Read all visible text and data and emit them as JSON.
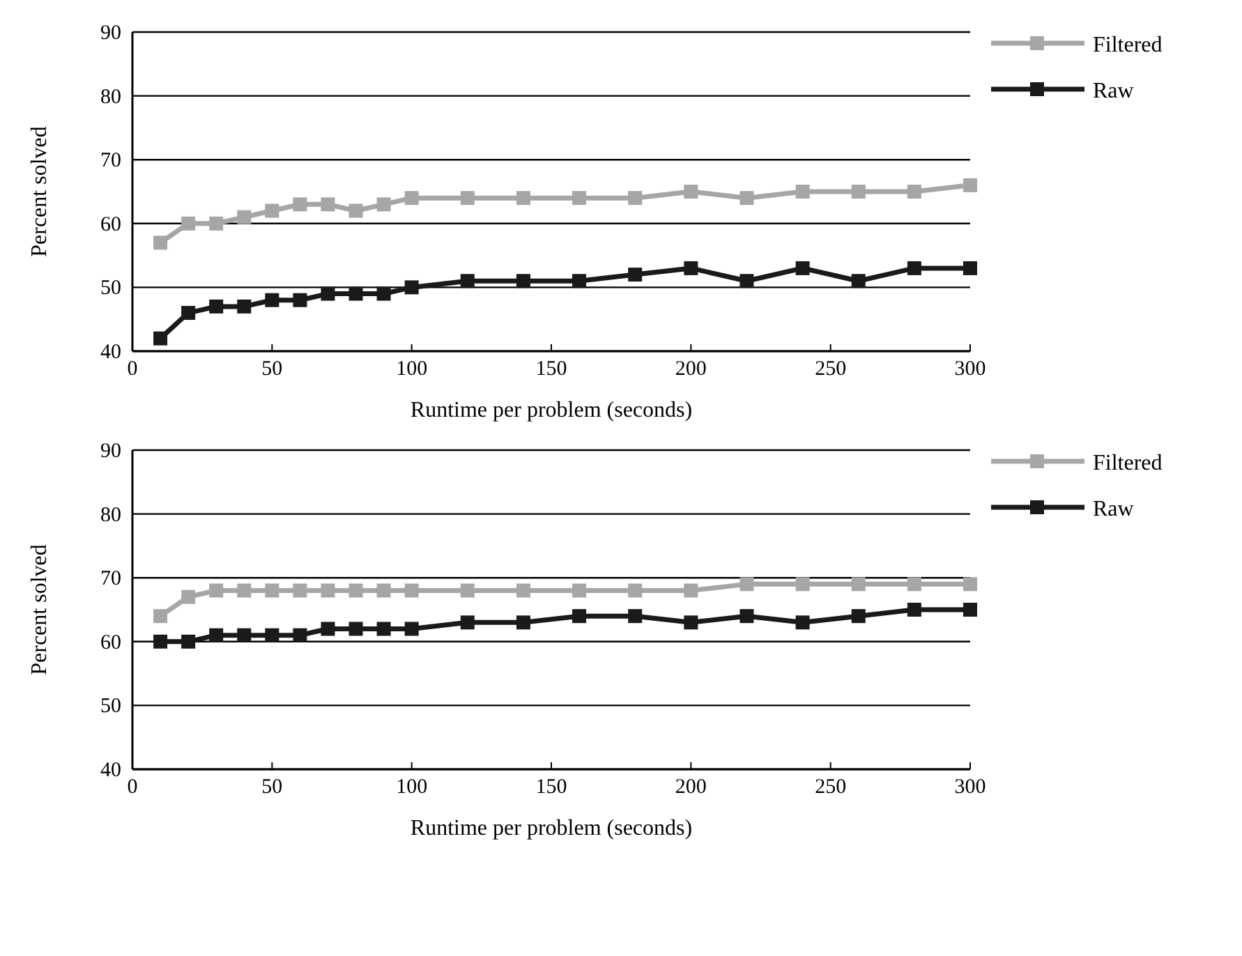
{
  "chart_data": [
    {
      "type": "line",
      "xlabel": "Runtime per problem (seconds)",
      "ylabel": "Percent solved",
      "x": [
        10,
        20,
        30,
        40,
        50,
        60,
        70,
        80,
        90,
        100,
        120,
        140,
        160,
        180,
        200,
        220,
        240,
        260,
        280,
        300
      ],
      "series": [
        {
          "name": "Filtered",
          "color": "#a6a6a6",
          "values": [
            57,
            60,
            60,
            61,
            62,
            63,
            63,
            62,
            63,
            64,
            64,
            64,
            64,
            64,
            65,
            64,
            65,
            65,
            65,
            66
          ]
        },
        {
          "name": "Raw",
          "color": "#1a1a1a",
          "values": [
            42,
            46,
            47,
            47,
            48,
            48,
            49,
            49,
            49,
            50,
            51,
            51,
            51,
            52,
            53,
            51,
            53,
            51,
            53,
            53
          ]
        }
      ],
      "xlim": [
        0,
        300
      ],
      "xticks": [
        0,
        50,
        100,
        150,
        200,
        250,
        300
      ],
      "ylim": [
        40,
        90
      ],
      "yticks": [
        40,
        50,
        60,
        70,
        80,
        90
      ],
      "grid": "y",
      "legend": "top right",
      "marker": "square",
      "line_style": "solid"
    },
    {
      "type": "line",
      "xlabel": "Runtime per problem (seconds)",
      "ylabel": "Percent solved",
      "x": [
        10,
        20,
        30,
        40,
        50,
        60,
        70,
        80,
        90,
        100,
        120,
        140,
        160,
        180,
        200,
        220,
        240,
        260,
        280,
        300
      ],
      "series": [
        {
          "name": "Filtered",
          "color": "#a6a6a6",
          "values": [
            64,
            67,
            68,
            68,
            68,
            68,
            68,
            68,
            68,
            68,
            68,
            68,
            68,
            68,
            68,
            69,
            69,
            69,
            69,
            69
          ]
        },
        {
          "name": "Raw",
          "color": "#1a1a1a",
          "values": [
            60,
            60,
            61,
            61,
            61,
            61,
            62,
            62,
            62,
            62,
            63,
            63,
            64,
            64,
            63,
            64,
            63,
            64,
            65,
            65
          ]
        }
      ],
      "xlim": [
        0,
        300
      ],
      "xticks": [
        0,
        50,
        100,
        150,
        200,
        250,
        300
      ],
      "ylim": [
        40,
        90
      ],
      "yticks": [
        40,
        50,
        60,
        70,
        80,
        90
      ],
      "grid": "y",
      "legend": "top right",
      "marker": "square",
      "line_style": "solid"
    }
  ]
}
